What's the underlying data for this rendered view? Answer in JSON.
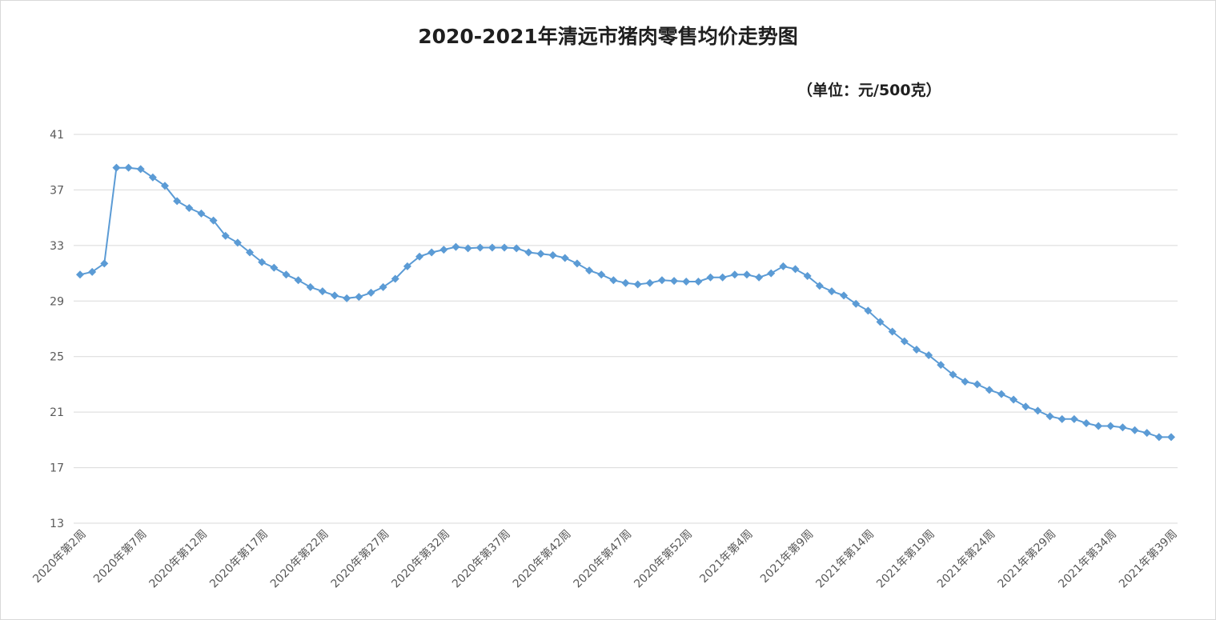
{
  "chart_data": {
    "type": "line",
    "title": "2020-2021年清远市猪肉零售均价走势图",
    "subtitle": "（单位：元/500克）",
    "xlabel": "",
    "ylabel": "",
    "ylim": [
      13,
      41
    ],
    "yticks": [
      13,
      17,
      21,
      25,
      29,
      33,
      37,
      41
    ],
    "grid": true,
    "legend": "none",
    "color": "#5b9bd5",
    "x_tick_labels": [
      "2020年第2周",
      "2020年第7周",
      "2020年第12周",
      "2020年第17周",
      "2020年第22周",
      "2020年第27周",
      "2020年第32周",
      "2020年第37周",
      "2020年第42周",
      "2020年第47周",
      "2020年第52周",
      "2021年第4周",
      "2021年第9周",
      "2021年第14周",
      "2021年第19周",
      "2021年第24周",
      "2021年第29周",
      "2021年第34周",
      "2021年第39周"
    ],
    "series": [
      {
        "values": [
          30.9,
          31.1,
          31.7,
          38.6,
          38.6,
          38.5,
          37.9,
          37.3,
          36.2,
          35.7,
          35.3,
          34.8,
          33.7,
          33.2,
          32.5,
          31.8,
          31.4,
          30.9,
          30.5,
          30.0,
          29.7,
          29.4,
          29.2,
          29.3,
          29.6,
          30.0,
          30.6,
          31.5,
          32.2,
          32.5,
          32.7,
          32.9,
          32.8,
          32.85,
          32.85,
          32.85,
          32.8,
          32.5,
          32.4,
          32.3,
          32.1,
          31.7,
          31.2,
          30.9,
          30.5,
          30.3,
          30.2,
          30.3,
          30.5,
          30.45,
          30.4,
          30.4,
          30.7,
          30.7,
          30.9,
          30.9,
          30.7,
          31.0,
          31.5,
          31.3,
          30.8,
          30.1,
          29.7,
          29.4,
          28.8,
          28.3,
          27.5,
          26.8,
          26.1,
          25.5,
          25.1,
          24.4,
          23.7,
          23.2,
          23.0,
          22.6,
          22.3,
          21.9,
          21.4,
          21.1,
          20.7,
          20.5,
          20.5,
          20.2,
          20.0,
          20.0,
          19.9,
          19.7,
          19.5,
          19.2,
          19.2
        ]
      }
    ]
  }
}
